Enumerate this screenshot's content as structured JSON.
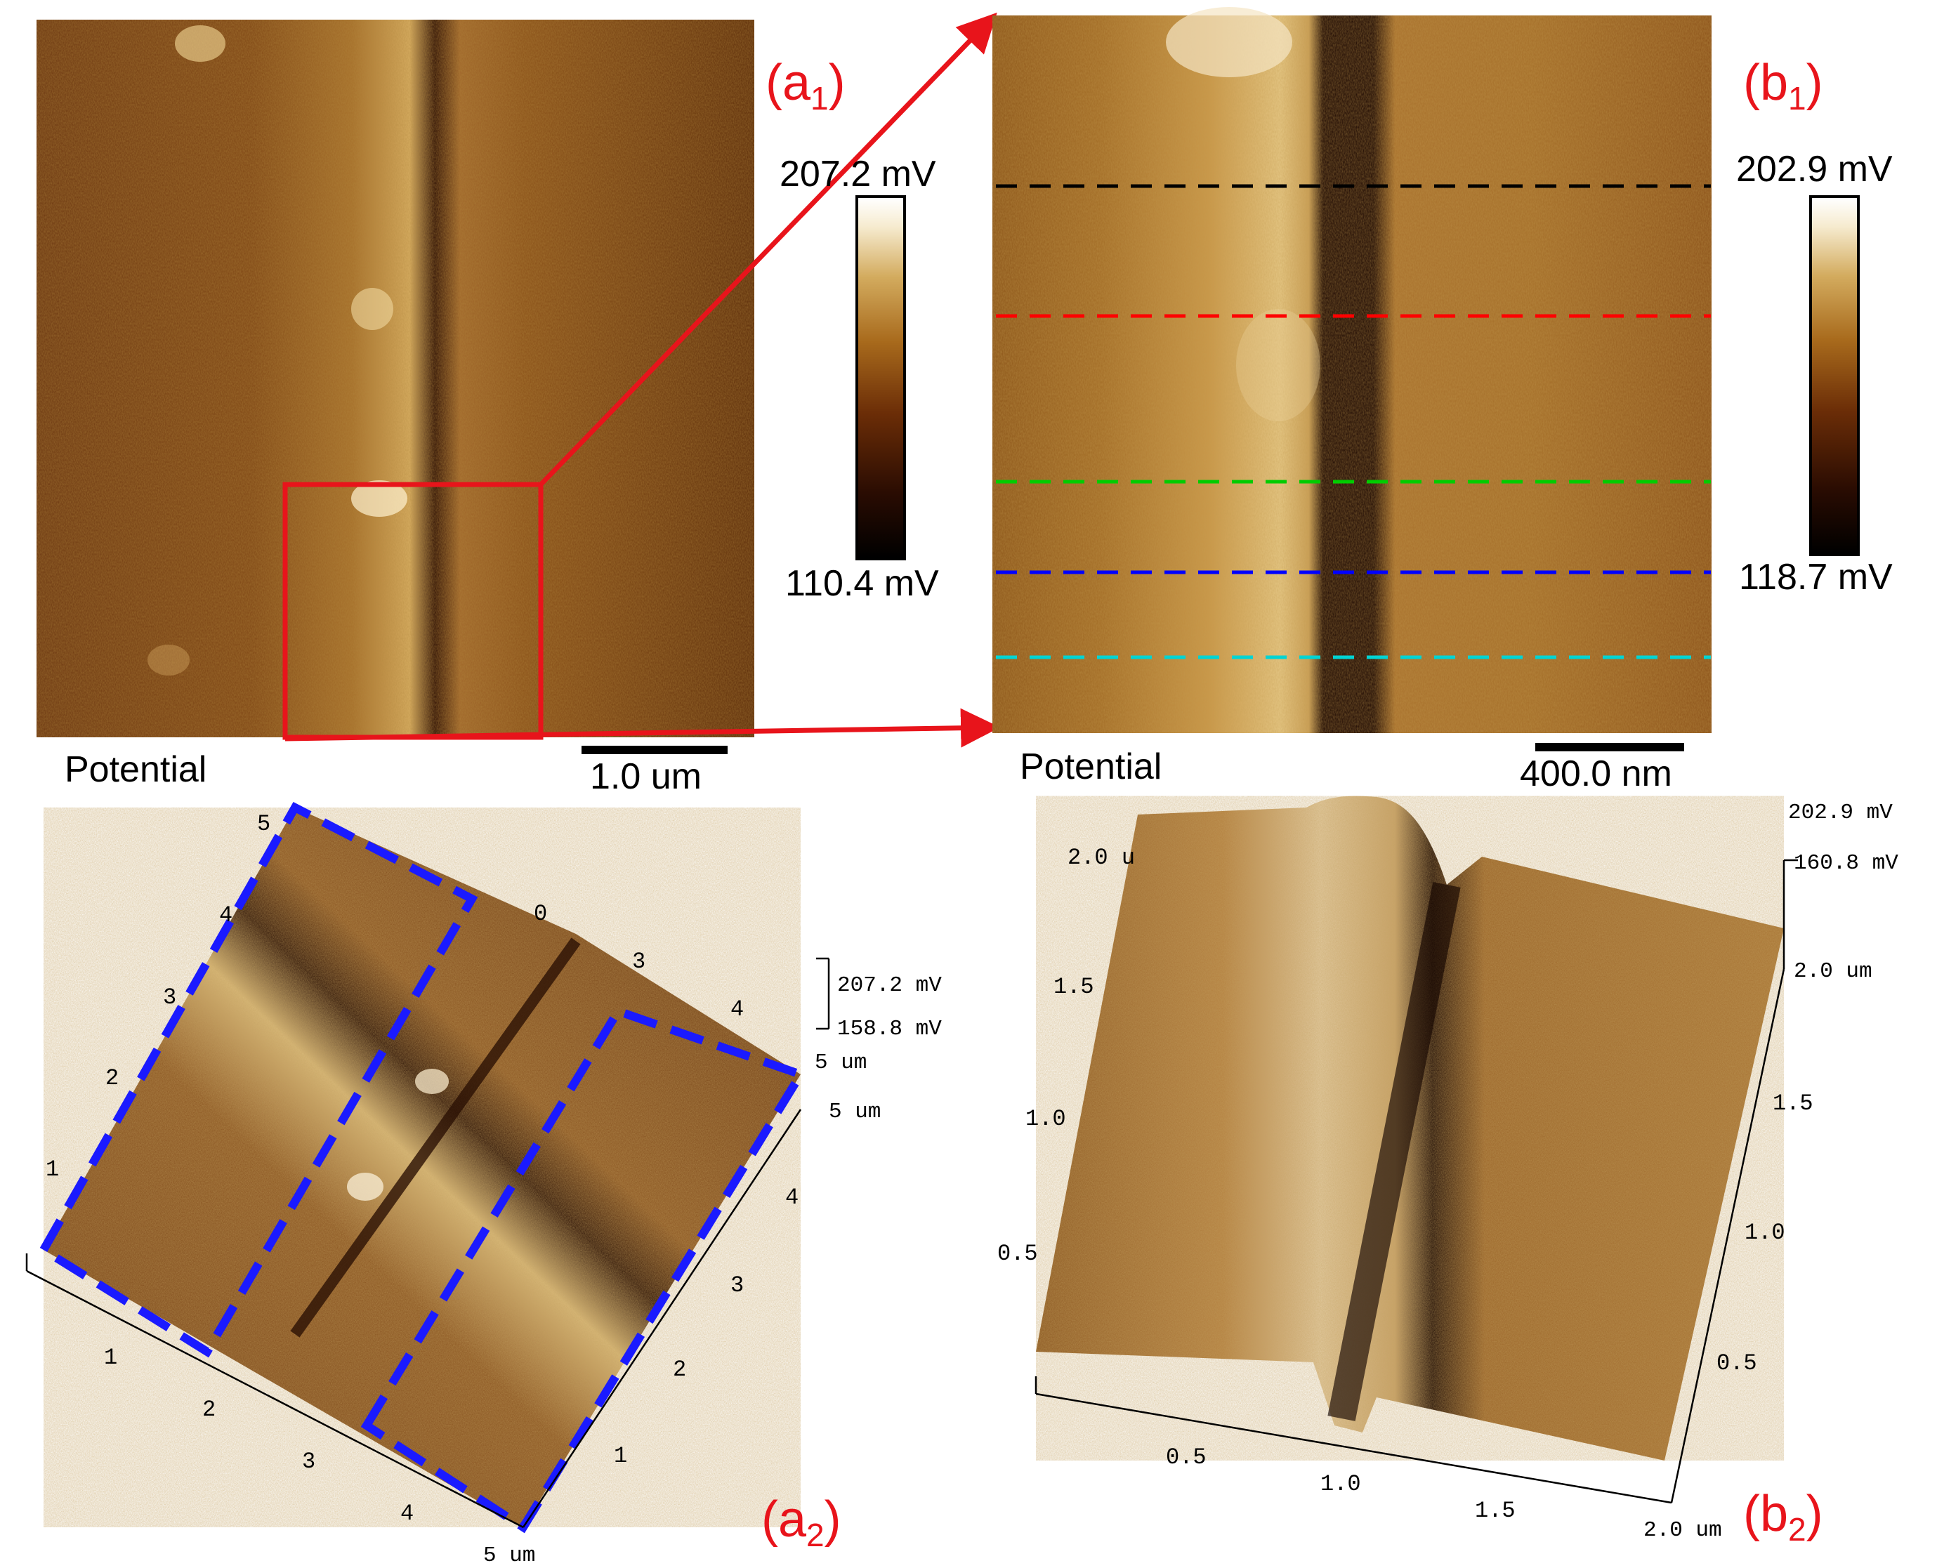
{
  "panels": {
    "a1": {
      "label_main": "(a",
      "label_sub": "1",
      "label_close": ")",
      "channel": "Potential",
      "scale_bar": "1.0 um",
      "colorbar_max": "207.2 mV",
      "colorbar_min": "110.4 mV"
    },
    "b1": {
      "label_main": "(b",
      "label_sub": "1",
      "label_close": ")",
      "channel": "Potential",
      "scale_bar": "400.0 nm",
      "colorbar_max": "202.9 mV",
      "colorbar_min": "118.7 mV",
      "line_colors": [
        "#000000",
        "#ff0000",
        "#00cc00",
        "#0000ff",
        "#00d4d4"
      ]
    },
    "a2": {
      "label_main": "(a",
      "label_sub": "2",
      "label_close": ")",
      "z_max": "207.2 mV",
      "z_mid": "158.8 mV",
      "z_axis_top": "5 um",
      "corner_unit": "5 um",
      "left_axis_ticks": [
        "1",
        "2",
        "3",
        "4",
        "5"
      ],
      "back_axis_ticks": [
        "0",
        "3",
        "4"
      ],
      "right_axis_ticks": [
        "1",
        "2",
        "3",
        "4"
      ],
      "bottom_axis_ticks": [
        "1",
        "2",
        "3",
        "4"
      ],
      "bottom_unit": "5 um",
      "outline_color": "#1a1aff"
    },
    "b2": {
      "label_main": "(b",
      "label_sub": "2",
      "label_close": ")",
      "z_max": "202.9 mV",
      "z_mid": "160.8 mV",
      "right_top": "2.0 um",
      "left_axis_ticks": [
        "0.5",
        "1.0",
        "1.5",
        "2.0 u"
      ],
      "right_axis_ticks": [
        "0.5",
        "1.0",
        "1.5"
      ],
      "bottom_axis_ticks": [
        "0.5",
        "1.0",
        "1.5"
      ],
      "bottom_unit": "2.0 um"
    }
  },
  "colors": {
    "annotation_red": "#e8141b",
    "map_dark": "#5a2a08",
    "map_light": "#f0d8a0"
  }
}
